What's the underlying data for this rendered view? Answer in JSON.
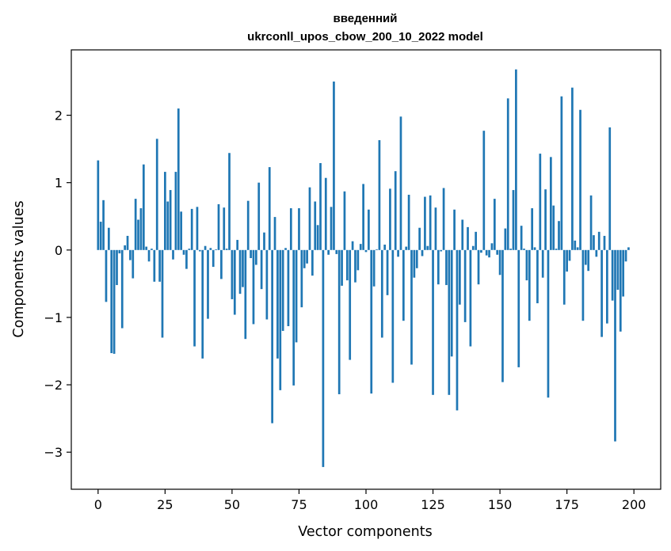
{
  "chart_data": {
    "type": "bar",
    "title": "введенний",
    "subtitle": "ukrconll_upos_cbow_200_10_2022 model",
    "xlabel": "Vector components",
    "ylabel": "Components values",
    "xlim": [
      -10,
      210
    ],
    "ylim": [
      -3.55,
      2.97
    ],
    "xticks": [
      0,
      25,
      50,
      75,
      100,
      125,
      150,
      175,
      200
    ],
    "yticks": [
      -3,
      -2,
      -1,
      0,
      1,
      2
    ],
    "ytick_labels": [
      "−3",
      "−2",
      "−1",
      "0",
      "1",
      "2"
    ],
    "grid": false,
    "bar_color": "#1f77b4",
    "values": [
      1.33,
      0.42,
      0.74,
      -0.77,
      0.33,
      -1.53,
      -1.54,
      -0.52,
      -0.05,
      -1.16,
      0.07,
      0.21,
      -0.15,
      -0.42,
      0.76,
      0.45,
      0.62,
      1.27,
      0.05,
      -0.17,
      0.02,
      -0.47,
      1.65,
      -0.47,
      -1.3,
      1.16,
      0.72,
      0.89,
      -0.14,
      1.16,
      2.1,
      0.57,
      -0.07,
      -0.28,
      0.02,
      0.61,
      -1.43,
      0.64,
      -0.02,
      -1.61,
      0.06,
      -1.02,
      0.03,
      -0.25,
      0.01,
      0.68,
      -0.43,
      0.63,
      0.02,
      1.44,
      -0.73,
      -0.96,
      0.15,
      -0.65,
      -0.55,
      -1.32,
      0.73,
      -0.12,
      -1.1,
      -0.22,
      1.0,
      -0.58,
      0.26,
      -1.03,
      1.23,
      -2.57,
      0.49,
      -1.61,
      -2.08,
      -1.2,
      0.03,
      -1.13,
      0.62,
      -2.01,
      -1.37,
      0.62,
      -0.85,
      -0.27,
      -0.2,
      0.93,
      -0.38,
      0.72,
      0.37,
      1.29,
      -3.22,
      1.07,
      -0.07,
      0.64,
      2.5,
      -0.06,
      -2.14,
      -0.53,
      0.87,
      -0.45,
      -1.63,
      0.13,
      -0.48,
      -0.3,
      0.09,
      0.98,
      -0.03,
      0.6,
      -2.13,
      -0.54,
      0.01,
      1.63,
      -1.3,
      0.08,
      -0.67,
      0.91,
      -1.97,
      1.17,
      -0.1,
      1.98,
      -1.05,
      0.05,
      0.82,
      -1.7,
      -0.41,
      -0.27,
      0.33,
      -0.09,
      0.79,
      0.06,
      0.81,
      -2.15,
      0.63,
      -0.51,
      -0.02,
      0.92,
      -0.52,
      -2.15,
      -1.58,
      0.6,
      -2.38,
      -0.81,
      0.45,
      -1.07,
      0.34,
      -1.43,
      0.06,
      0.27,
      -0.51,
      -0.04,
      1.77,
      -0.08,
      -0.11,
      0.1,
      0.76,
      -0.07,
      -0.37,
      -1.96,
      0.32,
      2.25,
      0.02,
      0.89,
      2.68,
      -1.74,
      0.36,
      0.02,
      -0.45,
      -1.05,
      0.62,
      0.04,
      -0.79,
      1.43,
      -0.41,
      0.9,
      -2.19,
      1.38,
      0.66,
      0.02,
      0.43,
      2.28,
      -0.81,
      -0.32,
      -0.16,
      2.41,
      0.14,
      0.04,
      2.08,
      -1.05,
      -0.22,
      -0.31,
      0.81,
      0.22,
      -0.1,
      0.27,
      -1.29,
      0.21,
      -1.09,
      1.82,
      -0.75,
      -2.84,
      -0.59,
      -1.21,
      -0.69,
      -0.17,
      0.04
    ]
  }
}
